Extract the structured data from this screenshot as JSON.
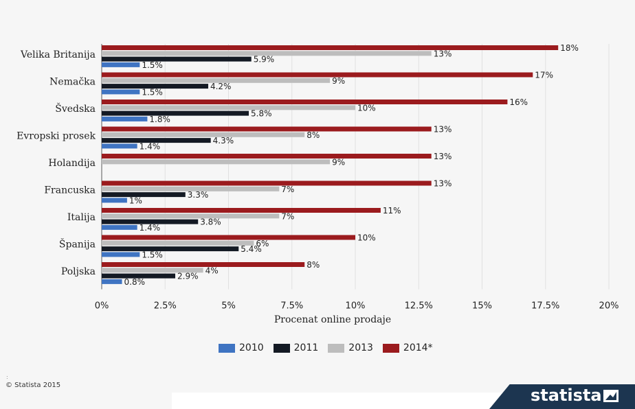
{
  "chart_data": {
    "type": "bar",
    "orientation": "horizontal",
    "categories": [
      "Velika Britanija",
      "Nemačka",
      "Švedska",
      "Evropski prosek",
      "Holandija",
      "Francuska",
      "Italija",
      "Španija",
      "Poljska"
    ],
    "series": [
      {
        "name": "2014*",
        "color": "#9b1b1e",
        "values": [
          18,
          17,
          16,
          13,
          13,
          13,
          11,
          10,
          8
        ],
        "labels": [
          "18%",
          "17%",
          "16%",
          "13%",
          "13%",
          "13%",
          "11%",
          "10%",
          "8%"
        ]
      },
      {
        "name": "2013",
        "color": "#bdbdbd",
        "values": [
          13,
          9,
          10,
          8,
          9,
          7,
          7,
          6,
          4
        ],
        "labels": [
          "13%",
          "9%",
          "10%",
          "8%",
          "9%",
          "7%",
          "7%",
          "6%",
          "4%"
        ]
      },
      {
        "name": "2011",
        "color": "#141a24",
        "values": [
          5.9,
          4.2,
          5.8,
          4.3,
          null,
          3.3,
          3.8,
          5.4,
          2.9
        ],
        "labels": [
          "5.9%",
          "4.2%",
          "5.8%",
          "4.3%",
          "",
          "3.3%",
          "3.8%",
          "5.4%",
          "2.9%"
        ]
      },
      {
        "name": "2010",
        "color": "#3f74c2",
        "values": [
          1.5,
          1.5,
          1.8,
          1.4,
          null,
          1,
          1.4,
          1.5,
          0.8
        ],
        "labels": [
          "1.5%",
          "1.5%",
          "1.8%",
          "1.4%",
          "",
          "1%",
          "1.4%",
          "1.5%",
          "0.8%"
        ]
      }
    ],
    "xlabel": "Procenat online prodaje",
    "ylabel": "",
    "xlim": [
      0,
      20
    ],
    "x_ticks": [
      0,
      2.5,
      5,
      7.5,
      10,
      12.5,
      15,
      17.5,
      20
    ],
    "x_tick_labels": [
      "0%",
      "2.5%",
      "5%",
      "7.5%",
      "10%",
      "12.5%",
      "15%",
      "17.5%",
      "20%"
    ],
    "grid": "vertical",
    "legend_position": "bottom"
  },
  "legend": {
    "items": [
      {
        "label": "2010",
        "color": "#3f74c2"
      },
      {
        "label": "2011",
        "color": "#141a24"
      },
      {
        "label": "2013",
        "color": "#bdbdbd"
      },
      {
        "label": "2014*",
        "color": "#9b1b1e"
      }
    ]
  },
  "footer": {
    "copyright": "© Statista 2015",
    "logo_text": "statista"
  }
}
